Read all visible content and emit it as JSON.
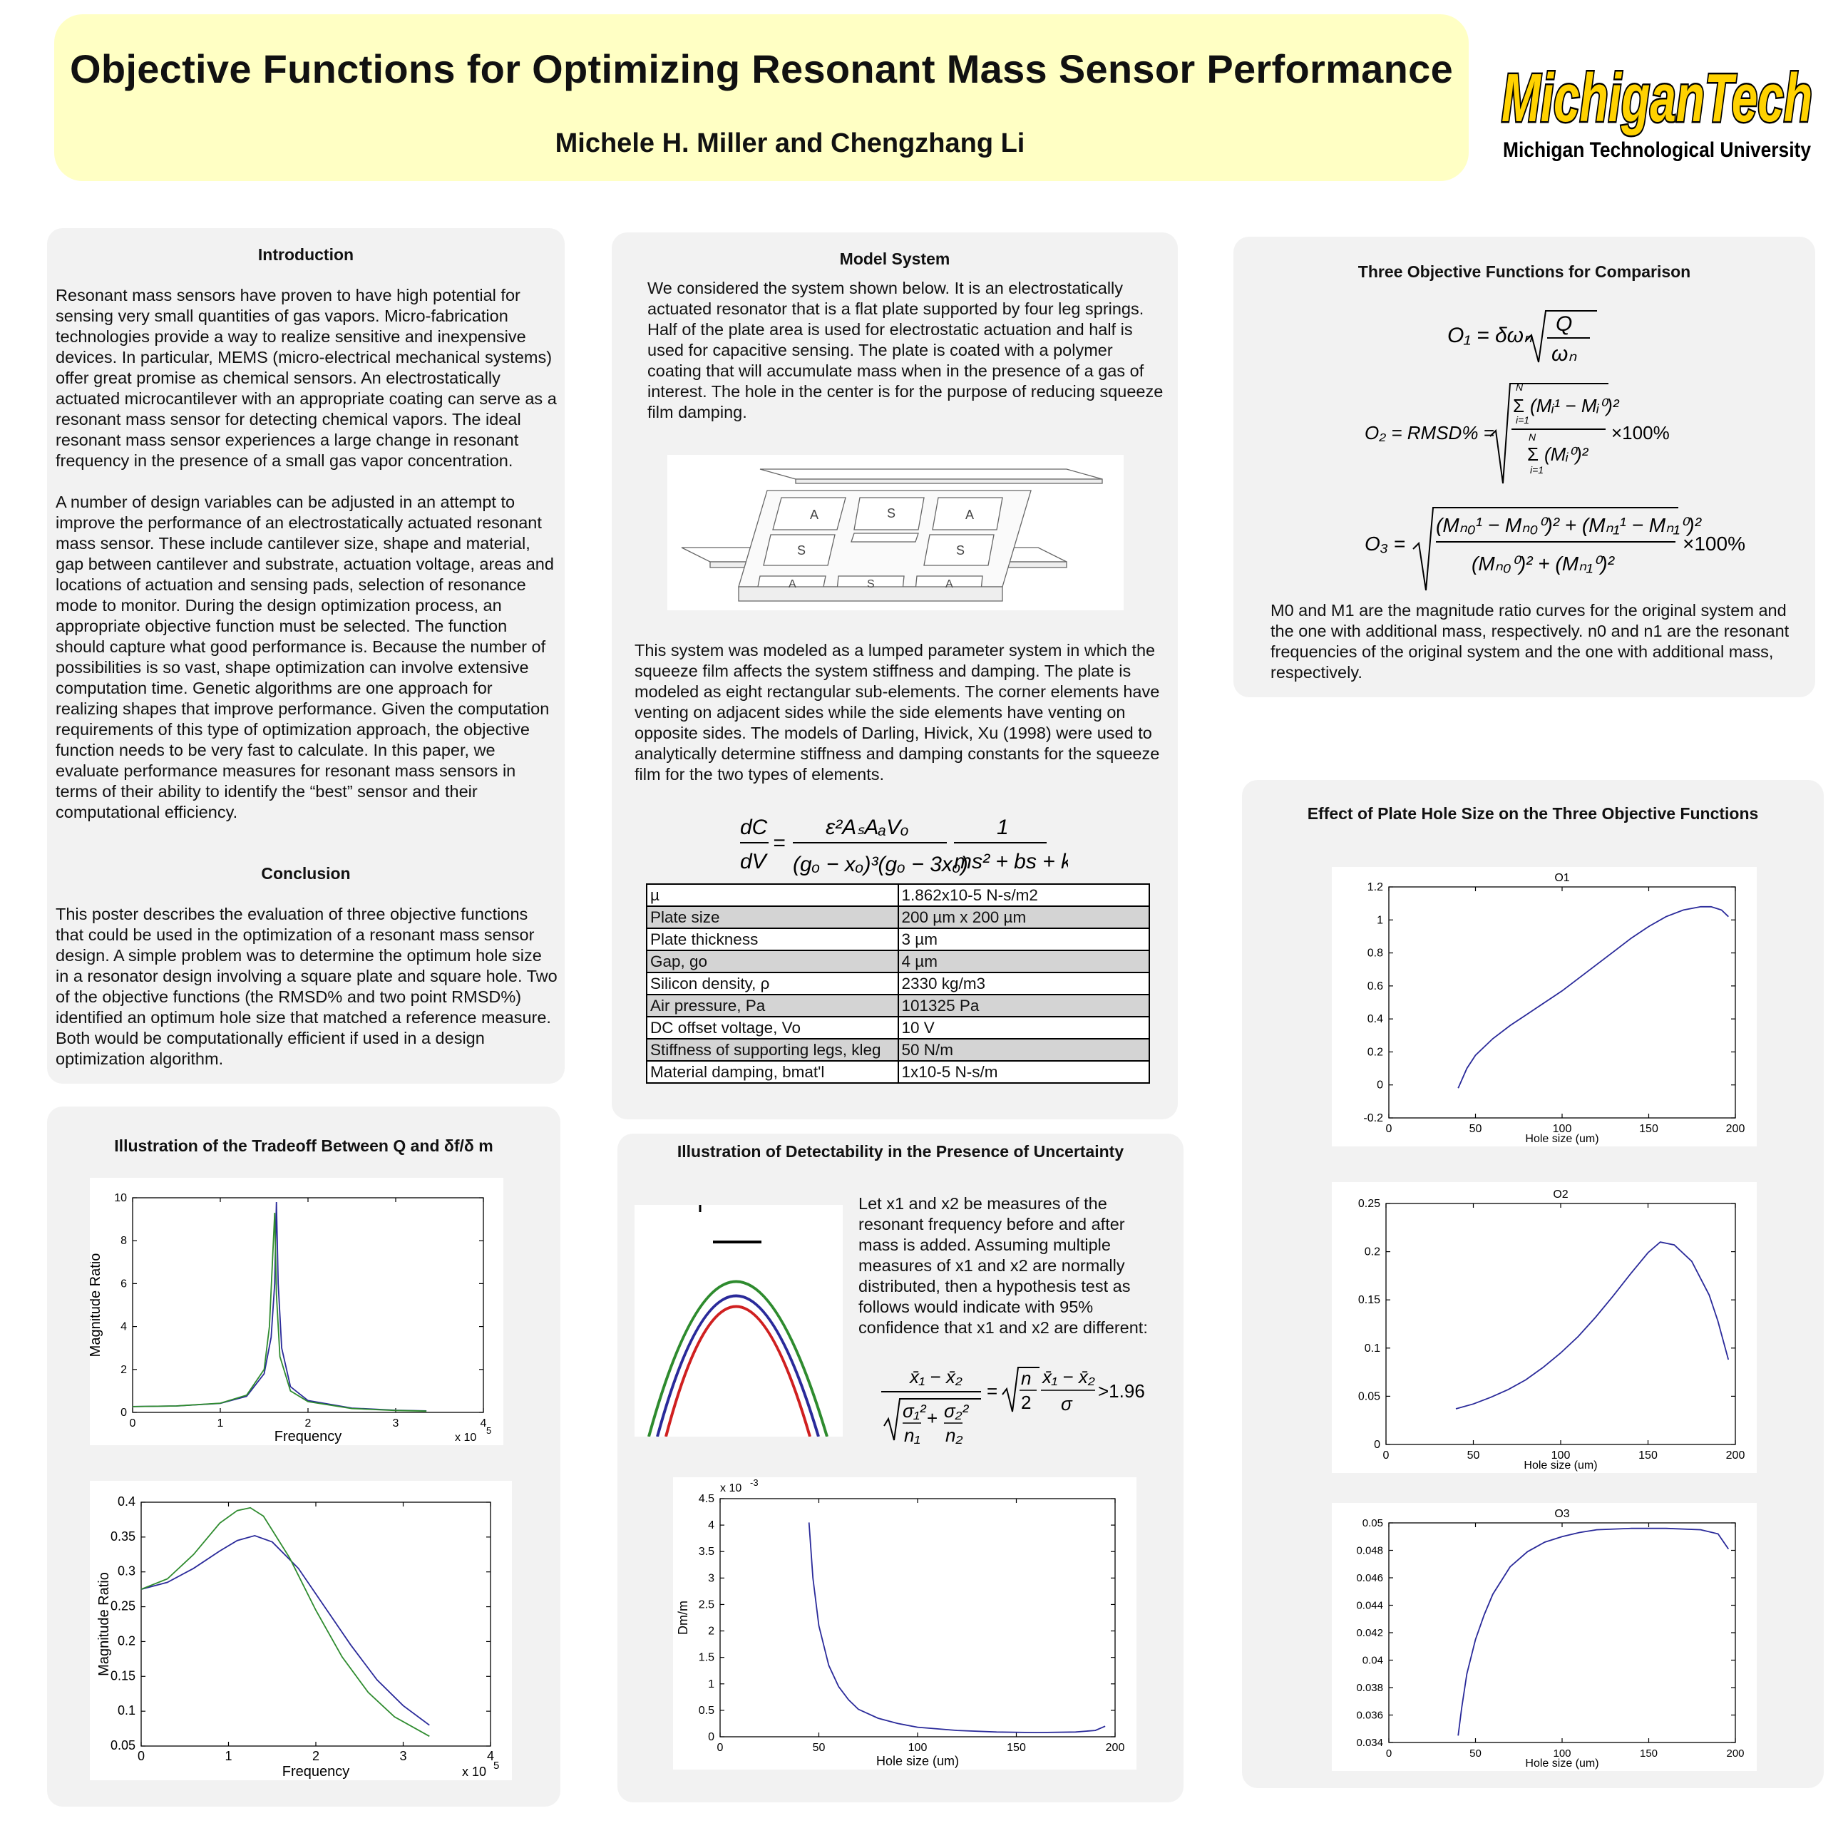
{
  "header": {
    "title": "Objective Functions for Optimizing Resonant Mass Sensor Performance",
    "authors": "Michele H. Miller and Chengzhang Li",
    "logo_text": "MichiganTech",
    "logo_sub": "Michigan Technological University"
  },
  "intro": {
    "heading": "Introduction",
    "p1": "Resonant mass sensors have proven to have high potential for sensing very small quantities of gas vapors.  Micro-fabrication technologies provide a way to realize sensitive and inexpensive devices. In particular, MEMS (micro-electrical mechanical systems) offer great promise as chemical sensors. An electrostatically actuated microcantilever with an appropriate coating can serve as a resonant mass sensor for detecting chemical vapors. The ideal resonant mass sensor experiences a large change in resonant frequency in the presence of a small gas vapor concentration.",
    "p2": "A number of design variables can be adjusted in an attempt to improve the performance of an electrostatically actuated resonant mass sensor.  These include cantilever size, shape and material, gap between cantilever and substrate, actuation voltage, areas and locations of actuation and sensing pads, selection of resonance mode to monitor. During the design optimization process, an appropriate objective function must be selected.  The function should capture what good performance is. Because the number of possibilities is so vast, shape optimization can involve extensive computation time.  Genetic algorithms are one approach for realizing shapes that improve performance.  Given the computation requirements of this type of optimization approach, the objective function needs to be very fast to calculate.  In this paper, we evaluate performance measures for resonant mass sensors in terms of their ability to identify the “best” sensor and their computational efficiency."
  },
  "conclusion": {
    "heading": "Conclusion",
    "p1": "This poster describes the evaluation of three objective functions that could be used in the optimization of a resonant mass sensor design.  A simple problem was to determine the optimum hole size in a resonator design involving a square plate and square hole.  Two of the objective functions (the RMSD% and two point RMSD%) identified an optimum hole size that matched a reference measure.  Both would be computationally efficient if used in a design optimization algorithm."
  },
  "tradeoff": {
    "heading": "Illustration of the Tradeoff Between Q and δf/δ m"
  },
  "model": {
    "heading": "Model System",
    "p1": "We considered the system shown below.  It is an electrostatically actuated resonator that is a flat plate supported by four leg springs.  Half of the plate area is used for electrostatic actuation and half is used for capacitive sensing.  The plate is coated with a polymer coating that will accumulate mass when in the presence of a gas of interest.  The hole in the center is for the purpose of reducing squeeze film damping.",
    "p2": "This system was modeled as a lumped parameter system in which the squeeze film affects the system stiffness and damping.  The plate is modeled as eight rectangular sub-elements.  The corner elements have venting on adjacent sides while the side elements have venting on opposite sides.  The models of Darling, Hivick, Xu (1998) were used to analytically determine stiffness and damping constants for the squeeze film for the two types of elements.",
    "pad_a": "A",
    "pad_s": "S"
  },
  "params": [
    {
      "name": "µ",
      "value": "1.862x10-5 N-s/m2"
    },
    {
      "name": "Plate size",
      "value": "200 µm x 200 µm"
    },
    {
      "name": "Plate thickness",
      "value": "3 µm"
    },
    {
      "name": "Gap, go",
      "value": "4 µm"
    },
    {
      "name": "Silicon density, ρ",
      "value": "2330 kg/m3"
    },
    {
      "name": "Air pressure, Pa",
      "value": "101325 Pa"
    },
    {
      "name": "DC offset voltage, Vo",
      "value": "10 V"
    },
    {
      "name": "Stiffness of supporting legs, kleg",
      "value": "50 N/m"
    },
    {
      "name": "Material damping, bmat'l",
      "value": "1x10-5 N-s/m"
    }
  ],
  "detect": {
    "heading": "Illustration of Detectability in the Presence of Uncertainty",
    "text": "Let x1 and x2 be measures of the resonant frequency before and after mass is added.  Assuming multiple measures of x1 and x2 are normally distributed, then a hypothesis test as follows would indicate with 95% confidence that x1 and x2 are different:"
  },
  "objectives": {
    "heading": "Three Objective Functions for Comparison",
    "note": "M0 and M1 are the magnitude ratio curves for the original system and the one with additional mass, respectively. n0 and n1 are the resonant frequencies of the original system and the one with additional mass, respectively."
  },
  "hole_effect": {
    "heading": "Effect of Plate Hole Size on the Three Objective Functions"
  },
  "chart_data": [
    {
      "id": "magnitude-peak",
      "type": "line",
      "xlabel": "Frequency",
      "ylabel": "Magnitude Ratio",
      "x_multiplier": "x 10",
      "x_exponent": "5",
      "xlim": [
        0,
        4
      ],
      "ylim": [
        0,
        10
      ],
      "xticks": [
        "0",
        "1",
        "2",
        "3",
        "4"
      ],
      "yticks": [
        "0",
        "2",
        "4",
        "6",
        "8",
        "10"
      ],
      "series": [
        {
          "color": "#2a2a9a",
          "x": [
            0,
            0.5,
            1.0,
            1.3,
            1.5,
            1.58,
            1.62,
            1.64,
            1.66,
            1.7,
            1.8,
            2.0,
            2.5,
            3.0,
            3.35
          ],
          "y": [
            0.27,
            0.3,
            0.42,
            0.75,
            1.8,
            3.5,
            6.0,
            9.8,
            6.0,
            3.0,
            1.2,
            0.55,
            0.2,
            0.1,
            0.07
          ]
        },
        {
          "color": "#2e8b2e",
          "x": [
            0,
            0.5,
            1.0,
            1.3,
            1.5,
            1.56,
            1.6,
            1.62,
            1.64,
            1.68,
            1.8,
            2.0,
            2.5,
            3.0,
            3.35
          ],
          "y": [
            0.27,
            0.3,
            0.43,
            0.8,
            2.0,
            4.0,
            7.5,
            9.3,
            5.5,
            2.6,
            1.0,
            0.5,
            0.18,
            0.09,
            0.06
          ]
        }
      ]
    },
    {
      "id": "magnitude-damped",
      "type": "line",
      "xlabel": "Frequency",
      "ylabel": "Magnitude Ratio",
      "x_multiplier": "x 10",
      "x_exponent": "5",
      "xlim": [
        0,
        4
      ],
      "ylim": [
        0.05,
        0.4
      ],
      "xticks": [
        "0",
        "1",
        "2",
        "3",
        "4"
      ],
      "yticks": [
        "0.05",
        "0.1",
        "0.15",
        "0.2",
        "0.25",
        "0.3",
        "0.35",
        "0.4"
      ],
      "series": [
        {
          "color": "#2a2a9a",
          "x": [
            0,
            0.3,
            0.6,
            0.9,
            1.1,
            1.3,
            1.5,
            1.8,
            2.1,
            2.4,
            2.7,
            3.0,
            3.3
          ],
          "y": [
            0.275,
            0.285,
            0.305,
            0.33,
            0.345,
            0.352,
            0.343,
            0.305,
            0.25,
            0.195,
            0.145,
            0.108,
            0.08
          ]
        },
        {
          "color": "#2e8b2e",
          "x": [
            0,
            0.3,
            0.6,
            0.9,
            1.1,
            1.25,
            1.4,
            1.7,
            2.0,
            2.3,
            2.6,
            2.9,
            3.3
          ],
          "y": [
            0.275,
            0.29,
            0.325,
            0.37,
            0.388,
            0.392,
            0.38,
            0.32,
            0.245,
            0.178,
            0.127,
            0.092,
            0.064
          ]
        }
      ]
    },
    {
      "id": "dm-vs-hole",
      "type": "line",
      "xlabel": "Hole size (um)",
      "ylabel": "Dm/m",
      "y_multiplier": "x 10",
      "y_exponent": "-3",
      "xlim": [
        0,
        200
      ],
      "ylim": [
        0,
        4.5
      ],
      "xticks": [
        "0",
        "50",
        "100",
        "150",
        "200"
      ],
      "yticks": [
        "0",
        "0.5",
        "1",
        "1.5",
        "2",
        "2.5",
        "3",
        "3.5",
        "4",
        "4.5"
      ],
      "series": [
        {
          "color": "#2a2a9a",
          "x": [
            45,
            47,
            50,
            55,
            60,
            65,
            70,
            80,
            90,
            100,
            120,
            140,
            160,
            180,
            190,
            195
          ],
          "y": [
            4.05,
            3.0,
            2.1,
            1.35,
            0.95,
            0.7,
            0.52,
            0.35,
            0.25,
            0.18,
            0.12,
            0.09,
            0.08,
            0.09,
            0.12,
            0.2
          ]
        }
      ]
    },
    {
      "id": "o1-vs-hole",
      "type": "line",
      "title": "O1",
      "xlabel": "Hole size (um)",
      "xlim": [
        0,
        200
      ],
      "ylim": [
        -0.2,
        1.2
      ],
      "xticks": [
        "0",
        "50",
        "100",
        "150",
        "200"
      ],
      "yticks": [
        "-0.2",
        "0",
        "0.2",
        "0.4",
        "0.6",
        "0.8",
        "1",
        "1.2"
      ],
      "series": [
        {
          "color": "#2a2a9a",
          "x": [
            40,
            45,
            50,
            60,
            70,
            80,
            90,
            100,
            110,
            120,
            130,
            140,
            150,
            160,
            170,
            180,
            186,
            192,
            196
          ],
          "y": [
            -0.02,
            0.1,
            0.18,
            0.28,
            0.36,
            0.43,
            0.5,
            0.57,
            0.65,
            0.73,
            0.81,
            0.89,
            0.96,
            1.02,
            1.06,
            1.08,
            1.08,
            1.06,
            1.02
          ]
        }
      ]
    },
    {
      "id": "o2-vs-hole",
      "type": "line",
      "title": "O2",
      "xlabel": "Hole size (um)",
      "xlim": [
        0,
        200
      ],
      "ylim": [
        0,
        0.25
      ],
      "xticks": [
        "0",
        "50",
        "100",
        "150",
        "200"
      ],
      "yticks": [
        "0",
        "0.05",
        "0.1",
        "0.15",
        "0.2",
        "0.25"
      ],
      "series": [
        {
          "color": "#2a2a9a",
          "x": [
            40,
            50,
            60,
            70,
            80,
            90,
            100,
            110,
            120,
            130,
            140,
            150,
            157,
            165,
            175,
            185,
            190,
            196
          ],
          "y": [
            0.037,
            0.042,
            0.049,
            0.057,
            0.067,
            0.08,
            0.095,
            0.112,
            0.132,
            0.154,
            0.177,
            0.199,
            0.21,
            0.207,
            0.19,
            0.155,
            0.128,
            0.088
          ]
        }
      ]
    },
    {
      "id": "o3-vs-hole",
      "type": "line",
      "title": "O3",
      "xlabel": "Hole size (um)",
      "xlim": [
        0,
        200
      ],
      "ylim": [
        0.034,
        0.05
      ],
      "xticks": [
        "0",
        "50",
        "100",
        "150",
        "200"
      ],
      "yticks": [
        "0.034",
        "0.036",
        "0.038",
        "0.04",
        "0.042",
        "0.044",
        "0.046",
        "0.048",
        "0.05"
      ],
      "series": [
        {
          "color": "#2a2a9a",
          "x": [
            40,
            42,
            45,
            50,
            55,
            60,
            70,
            80,
            90,
            100,
            110,
            120,
            140,
            160,
            180,
            190,
            196
          ],
          "y": [
            0.0345,
            0.0365,
            0.039,
            0.0415,
            0.0433,
            0.0448,
            0.0468,
            0.0479,
            0.0486,
            0.049,
            0.0493,
            0.0495,
            0.0496,
            0.0496,
            0.0495,
            0.0492,
            0.0481
          ]
        }
      ]
    }
  ]
}
